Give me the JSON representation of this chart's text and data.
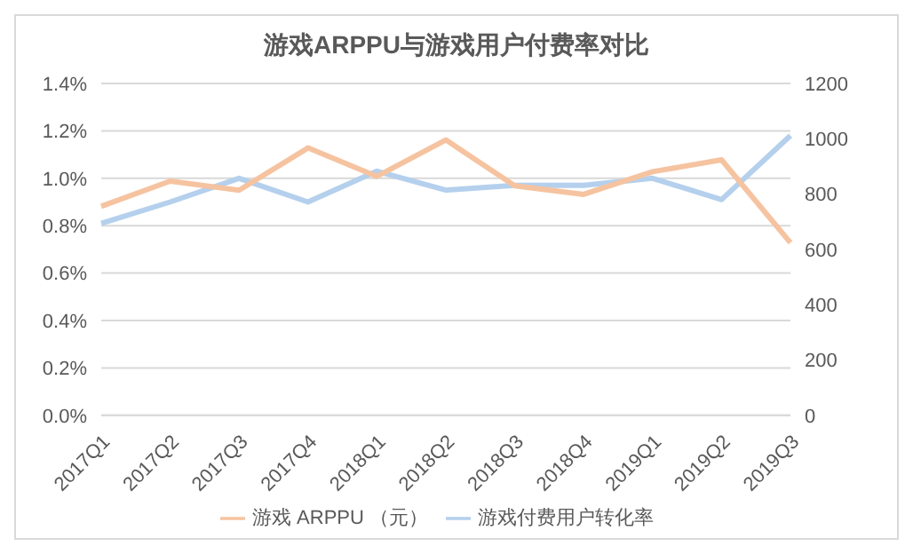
{
  "chart_data": {
    "type": "line",
    "title": "游戏ARPPU与游戏用户付费率对比",
    "categories": [
      "2017Q1",
      "2017Q2",
      "2017Q3",
      "2017Q4",
      "2018Q1",
      "2018Q2",
      "2018Q3",
      "2018Q4",
      "2019Q1",
      "2019Q2",
      "2019Q3"
    ],
    "series": [
      {
        "name": "游戏付费用户转化率",
        "color": "#b4d0ed",
        "values": [
          0.81,
          0.9,
          1.0,
          0.9,
          1.03,
          0.95,
          0.97,
          0.97,
          1.0,
          0.91,
          1.18
        ]
      },
      {
        "name": "游戏 ARPPU （元）",
        "color": "#f6c3a0",
        "axis": "y2",
        "values": [
          756,
          847,
          814,
          967,
          864,
          996,
          830,
          799,
          881,
          924,
          624
        ]
      }
    ],
    "ylim": [
      0,
      1.4
    ],
    "yticks": [
      {
        "value": 0,
        "label": "0.0%"
      },
      {
        "value": 0.2,
        "label": "0.2%"
      },
      {
        "value": 0.4,
        "label": "0.4%"
      },
      {
        "value": 0.6,
        "label": "0.6%"
      },
      {
        "value": 0.8,
        "label": "0.8%"
      },
      {
        "value": 1.0,
        "label": "1.0%"
      },
      {
        "value": 1.2,
        "label": "1.2%"
      },
      {
        "value": 1.4,
        "label": "1.4%"
      }
    ],
    "y2lim": [
      0,
      1200
    ],
    "y2ticks": [
      0,
      200,
      400,
      600,
      800,
      1000,
      1200
    ],
    "grid": "y",
    "legend": "bottom",
    "marker": "none",
    "line_style": "solid"
  }
}
